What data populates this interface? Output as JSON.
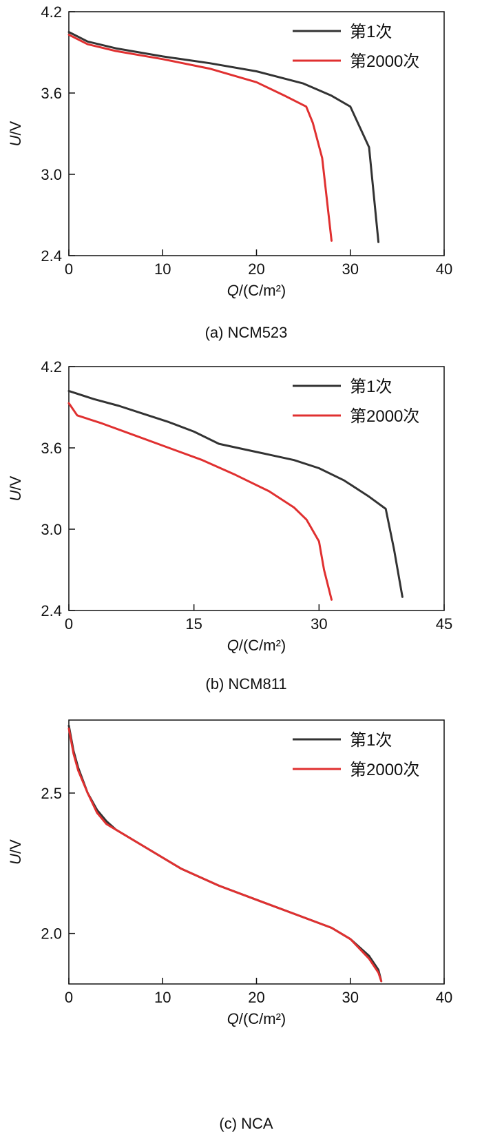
{
  "chart_data": [
    {
      "type": "line",
      "caption": "(a) NCM523",
      "xlabel": {
        "var": "Q",
        "unit": "/(C/m²)"
      },
      "ylabel": {
        "var": "U",
        "unit": "/V"
      },
      "xlim": [
        0,
        40
      ],
      "ylim": [
        2.4,
        4.2
      ],
      "xticks": [
        0,
        10,
        20,
        30,
        40
      ],
      "yticks": [
        2.4,
        3.0,
        3.6,
        4.2
      ],
      "xtick_labels": [
        "0",
        "10",
        "20",
        "30",
        "40"
      ],
      "ytick_labels": [
        "2.4",
        "3.0",
        "3.6",
        "4.2"
      ],
      "grid": false,
      "legend": "top-right",
      "series": [
        {
          "name": "第1次",
          "color": "#333333",
          "x": [
            0,
            2,
            5,
            10,
            15,
            20,
            25,
            28,
            30,
            31,
            32,
            33
          ],
          "y": [
            4.05,
            3.98,
            3.93,
            3.87,
            3.82,
            3.76,
            3.67,
            3.58,
            3.5,
            3.35,
            3.2,
            2.5
          ]
        },
        {
          "name": "第2000次",
          "color": "#e03030",
          "x": [
            0,
            2,
            5,
            10,
            15,
            20,
            23,
            25.3,
            26,
            27,
            28
          ],
          "y": [
            4.03,
            3.96,
            3.91,
            3.85,
            3.78,
            3.68,
            3.58,
            3.5,
            3.38,
            3.12,
            2.51
          ]
        }
      ]
    },
    {
      "type": "line",
      "caption": "(b) NCM811",
      "xlabel": {
        "var": "Q",
        "unit": "/(C/m²)"
      },
      "ylabel": {
        "var": "U",
        "unit": "/V"
      },
      "xlim": [
        0,
        45
      ],
      "ylim": [
        2.4,
        4.2
      ],
      "xticks": [
        0,
        15,
        30,
        45
      ],
      "yticks": [
        2.4,
        3.0,
        3.6,
        4.2
      ],
      "xtick_labels": [
        "0",
        "15",
        "30",
        "45"
      ],
      "ytick_labels": [
        "2.4",
        "3.0",
        "3.6",
        "4.2"
      ],
      "grid": false,
      "legend": "top-right",
      "series": [
        {
          "name": "第1次",
          "color": "#333333",
          "x": [
            0,
            3,
            6,
            9,
            12,
            15,
            18,
            21,
            24,
            27,
            30,
            33,
            36,
            38,
            39,
            40
          ],
          "y": [
            4.02,
            3.96,
            3.91,
            3.85,
            3.79,
            3.72,
            3.63,
            3.59,
            3.55,
            3.51,
            3.45,
            3.36,
            3.24,
            3.15,
            2.85,
            2.5
          ]
        },
        {
          "name": "第2000次",
          "color": "#e03030",
          "x": [
            0,
            1,
            4,
            8,
            12,
            16,
            20,
            24,
            27,
            28.5,
            30,
            30.6,
            31.5
          ],
          "y": [
            3.93,
            3.84,
            3.78,
            3.69,
            3.6,
            3.51,
            3.4,
            3.28,
            3.16,
            3.07,
            2.91,
            2.7,
            2.48
          ]
        }
      ]
    },
    {
      "type": "line",
      "caption": "(c) NCA",
      "xlabel": {
        "var": "Q",
        "unit": "/(C/m²)"
      },
      "ylabel": {
        "var": "U",
        "unit": "/V"
      },
      "xlim": [
        0,
        40
      ],
      "ylim": [
        1.82,
        2.76
      ],
      "xticks": [
        0,
        10,
        20,
        30,
        40
      ],
      "yticks": [
        2.0,
        2.5
      ],
      "xtick_labels": [
        "0",
        "10",
        "20",
        "30",
        "40"
      ],
      "ytick_labels": [
        "2.0",
        "2.5"
      ],
      "grid": false,
      "legend": "top-right",
      "series": [
        {
          "name": "第1次",
          "color": "#333333",
          "x": [
            0,
            0.5,
            1,
            2,
            3,
            4,
            5,
            8,
            12,
            16,
            20,
            24,
            28,
            30,
            32,
            33,
            33.3
          ],
          "y": [
            2.74,
            2.65,
            2.59,
            2.5,
            2.44,
            2.4,
            2.37,
            2.31,
            2.23,
            2.17,
            2.12,
            2.07,
            2.02,
            1.98,
            1.92,
            1.87,
            1.83
          ]
        },
        {
          "name": "第2000次",
          "color": "#e03030",
          "x": [
            0,
            0.5,
            1,
            2,
            3,
            4,
            5,
            8,
            12,
            16,
            20,
            24,
            28,
            30,
            32,
            33,
            33.3
          ],
          "y": [
            2.73,
            2.64,
            2.58,
            2.5,
            2.43,
            2.39,
            2.37,
            2.31,
            2.23,
            2.17,
            2.12,
            2.07,
            2.02,
            1.98,
            1.91,
            1.86,
            1.83
          ]
        }
      ]
    }
  ]
}
